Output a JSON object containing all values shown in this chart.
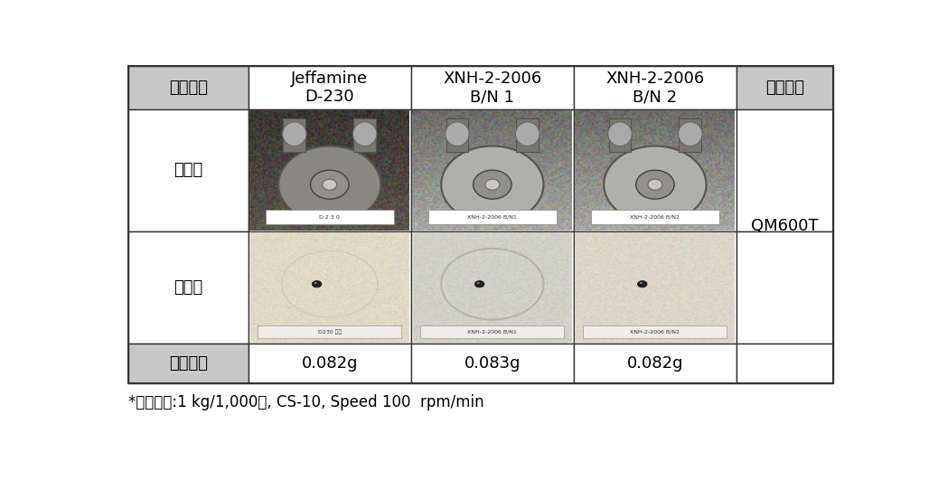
{
  "footnote": "*시험조건:1 kg/1,000회, CS-10, Speed 100  rpm/min",
  "col_headers_row0": [
    "평가항목",
    "Jeffamine\nD-230",
    "XNH-2-2006\nB/N 1",
    "XNH-2-2006\nB/N 2",
    "평가기기"
  ],
  "row_label_before": "시험전",
  "row_label_after": "시험후",
  "row_label_loss": "마모감량",
  "values_row3": [
    "0.082g",
    "0.083g",
    "0.082g"
  ],
  "eval_device": "QM600T",
  "header_bg": "#c8c8c8",
  "cell_bg": "#ffffff",
  "border_color": "#333333",
  "text_color": "#000000",
  "font_size": 13,
  "footnote_font_size": 12,
  "fig_width": 10.38,
  "fig_height": 5.42
}
